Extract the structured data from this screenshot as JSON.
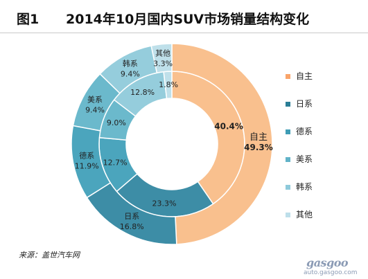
{
  "header": {
    "figure_label": "图1",
    "title": "2014年10月国内SUV市场销量结构变化"
  },
  "chart_data": {
    "type": "donut",
    "categories": [
      "自主",
      "日系",
      "德系",
      "美系",
      "韩系",
      "其他"
    ],
    "series": [
      {
        "ring": "inner",
        "values": [
          40.4,
          23.3,
          12.7,
          9.0,
          12.8,
          1.8
        ],
        "labels": [
          "40.4%",
          "23.3%",
          "12.7%",
          "9.0%",
          "12.8%",
          "1.8%"
        ]
      },
      {
        "ring": "outer",
        "values": [
          49.3,
          16.8,
          11.9,
          9.4,
          9.4,
          3.3
        ],
        "labels": [
          "49.3%",
          "16.8%",
          "11.9%",
          "9.4%",
          "9.4%",
          "3.3%"
        ]
      }
    ],
    "colors": {
      "outer": [
        "#f9c08e",
        "#3d8da6",
        "#4ba5bd",
        "#6bb9cc",
        "#95cddc",
        "#bfe0ea"
      ],
      "inner": [
        "#f9c08e",
        "#3d8da6",
        "#4ba5bd",
        "#6bb9cc",
        "#95cddc",
        "#bfe0ea"
      ]
    },
    "legend": [
      {
        "label": "自主",
        "color": "#f9a46a"
      },
      {
        "label": "日系",
        "color": "#2a7e96"
      },
      {
        "label": "德系",
        "color": "#3f9cb5"
      },
      {
        "label": "美系",
        "color": "#61b3c8"
      },
      {
        "label": "韩系",
        "color": "#8ecadb"
      },
      {
        "label": "其他",
        "color": "#bddfea"
      }
    ],
    "legend_position": "right"
  },
  "source": {
    "text": "来源：盖世汽车网"
  },
  "watermark": {
    "logo": "gasgoo",
    "url": "auto.gasgoo.com"
  }
}
